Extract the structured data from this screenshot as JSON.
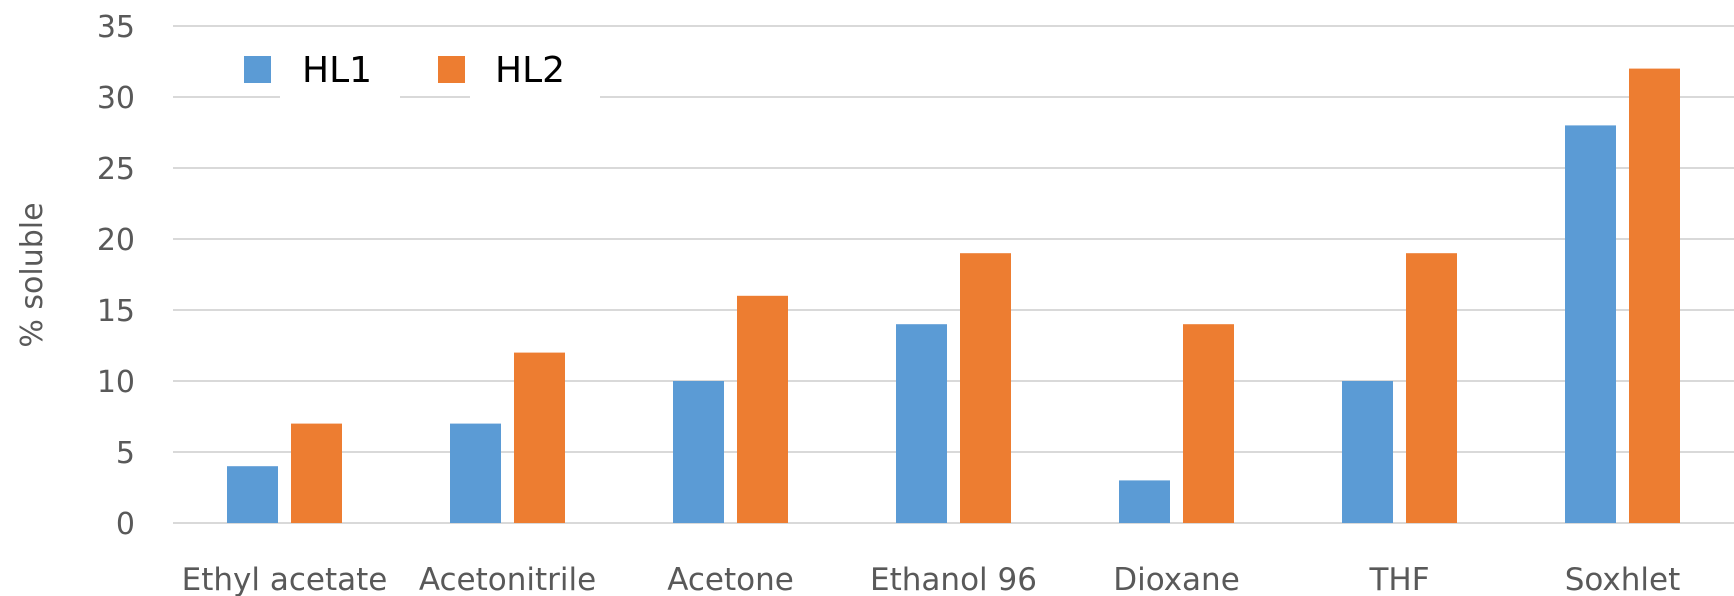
{
  "chart_data": {
    "type": "bar",
    "title": "",
    "xlabel": "",
    "ylabel": "% soluble",
    "ylim": [
      0,
      35
    ],
    "yticks": [
      0,
      5,
      10,
      15,
      20,
      25,
      30,
      35
    ],
    "grid": true,
    "legend_position": "top-left",
    "categories": [
      "Ethyl acetate",
      "Acetonitrile",
      "Acetone",
      "Ethanol 96",
      "Dioxane",
      "THF",
      "Soxhlet"
    ],
    "series": [
      {
        "name": "HL1",
        "color": "#5B9BD5",
        "values": [
          4,
          7,
          10,
          14,
          3,
          10,
          28
        ]
      },
      {
        "name": "HL2",
        "color": "#ED7D31",
        "values": [
          7,
          12,
          16,
          19,
          14,
          19,
          32
        ]
      }
    ]
  }
}
